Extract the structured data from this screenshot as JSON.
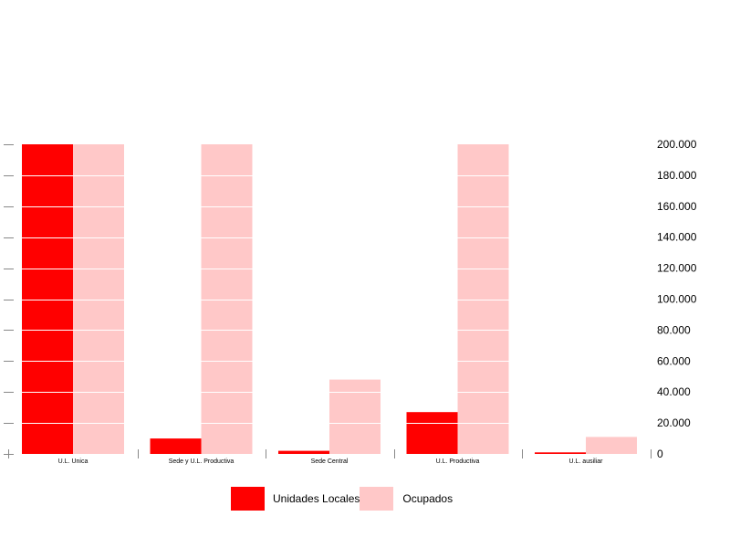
{
  "chart_data": {
    "type": "bar",
    "categories": [
      "U.L. Unica",
      "Sede y U.L. Productiva",
      "Sede Central",
      "U.L. Productiva",
      "U.L. ausiliar"
    ],
    "series": [
      {
        "name": "Unidades Locales",
        "color": "#ff0000",
        "values": [
          200000,
          10000,
          2000,
          27000,
          1000
        ]
      },
      {
        "name": "Ocupados",
        "color": "#ffc8c8",
        "values": [
          200000,
          200000,
          48000,
          200000,
          11000
        ]
      }
    ],
    "ylim": [
      0,
      200000
    ],
    "y_ticks": [
      0,
      20000,
      40000,
      60000,
      80000,
      100000,
      120000,
      140000,
      160000,
      180000,
      200000
    ],
    "y_tick_labels": [
      "0",
      "20.000",
      "40.000",
      "60.000",
      "80.000",
      "100.000",
      "120.000",
      "140.000",
      "160.000",
      "180.000",
      "200.000"
    ],
    "y_axis_position": "right",
    "gridlines": "white horizontal lines over bars",
    "legend_position": "bottom"
  }
}
